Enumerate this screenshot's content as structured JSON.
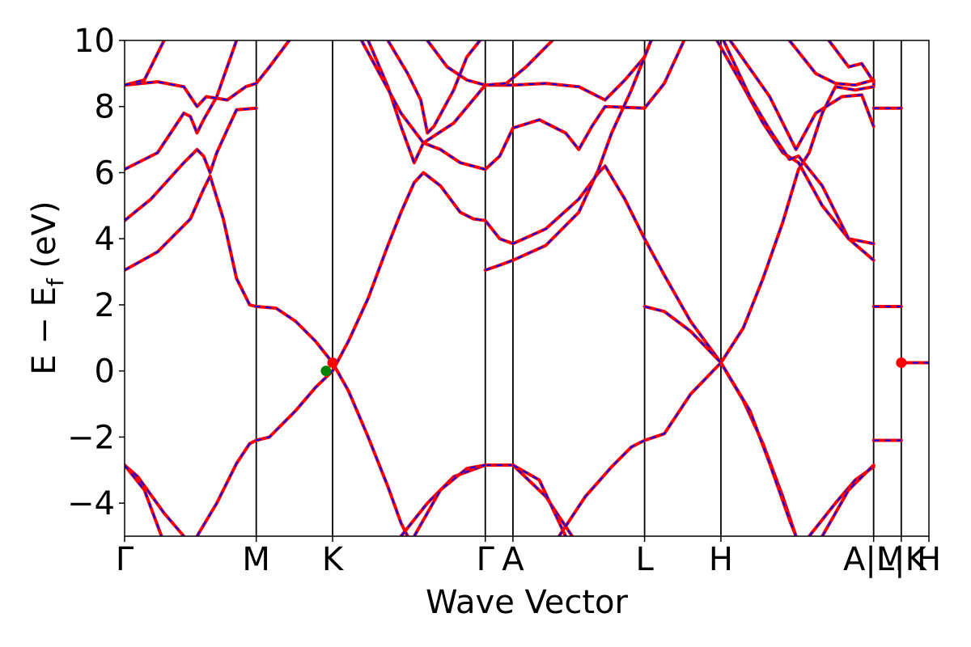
{
  "chart_data": {
    "type": "line",
    "title": "",
    "xlabel": "Wave Vector",
    "ylabel": {
      "base": "E − E",
      "sub": "f",
      "unit": " (eV)"
    },
    "ylim": [
      -5,
      10
    ],
    "yticks": [
      -4,
      -2,
      0,
      2,
      4,
      6,
      8,
      10
    ],
    "ytick_labels": [
      "−4",
      "−2",
      "0",
      "2",
      "4",
      "6",
      "8",
      "10"
    ],
    "grid": false,
    "legend": "none",
    "kpath": [
      {
        "label": "Γ",
        "x": 0.0
      },
      {
        "label": "M",
        "x": 1.0
      },
      {
        "label": "K",
        "x": 1.58
      },
      {
        "label": "Γ",
        "x": 2.74
      },
      {
        "label": "A",
        "x": 2.95
      },
      {
        "label": "L",
        "x": 3.95
      },
      {
        "label": "H",
        "x": 4.53
      },
      {
        "label": "A|M",
        "x": 5.69
      },
      {
        "label": "L|K",
        "x": 5.9
      },
      {
        "label": "H",
        "x": 6.11
      }
    ],
    "xlim": [
      0,
      6.11
    ],
    "colors": {
      "band": "#ff0000",
      "overlay": "#0000ff",
      "weyl_point": "#ff0000",
      "fermi_point": "#008000"
    },
    "series": [
      {
        "style": "band",
        "points": [
          [
            0,
            3.05
          ],
          [
            0.25,
            3.6
          ],
          [
            0.5,
            4.6
          ],
          [
            0.6,
            5.5
          ],
          [
            0.65,
            5.9
          ],
          [
            0.75,
            4.6
          ],
          [
            0.85,
            2.8
          ],
          [
            0.95,
            2.0
          ],
          [
            1.0,
            1.95
          ],
          [
            1.15,
            1.9
          ],
          [
            1.3,
            1.5
          ],
          [
            1.45,
            0.9
          ],
          [
            1.58,
            0.25
          ],
          [
            1.7,
            -0.6
          ],
          [
            1.85,
            -2.0
          ],
          [
            2.0,
            -3.5
          ],
          [
            2.1,
            -4.6
          ],
          [
            2.15,
            -5.0
          ]
        ]
      },
      {
        "style": "band",
        "points": [
          [
            0,
            -2.85
          ],
          [
            0.1,
            -3.2
          ],
          [
            0.3,
            -4.3
          ],
          [
            0.45,
            -5.0
          ]
        ]
      },
      {
        "style": "band",
        "points": [
          [
            0,
            -2.85
          ],
          [
            0.15,
            -3.6
          ],
          [
            0.28,
            -5.0
          ]
        ]
      },
      {
        "style": "band",
        "points": [
          [
            0.55,
            -5.0
          ],
          [
            0.7,
            -4.0
          ],
          [
            0.85,
            -2.8
          ],
          [
            0.95,
            -2.2
          ],
          [
            1.0,
            -2.1
          ],
          [
            1.1,
            -2.0
          ],
          [
            1.3,
            -1.2
          ],
          [
            1.45,
            -0.5
          ],
          [
            1.58,
            0.0
          ],
          [
            1.7,
            0.9
          ],
          [
            1.85,
            2.2
          ],
          [
            2.0,
            3.8
          ],
          [
            2.1,
            4.8
          ],
          [
            2.2,
            5.7
          ],
          [
            2.27,
            6.0
          ],
          [
            2.4,
            5.6
          ],
          [
            2.55,
            4.8
          ],
          [
            2.65,
            4.6
          ],
          [
            2.74,
            4.55
          ],
          [
            2.85,
            4.0
          ],
          [
            2.95,
            3.85
          ],
          [
            3.2,
            4.3
          ],
          [
            3.45,
            5.2
          ],
          [
            3.6,
            6.0
          ],
          [
            3.65,
            6.2
          ],
          [
            3.8,
            5.2
          ],
          [
            3.95,
            4.0
          ],
          [
            4.1,
            2.9
          ],
          [
            4.3,
            1.5
          ],
          [
            4.53,
            0.25
          ],
          [
            4.7,
            -0.9
          ],
          [
            4.85,
            -2.2
          ],
          [
            5.0,
            -3.8
          ],
          [
            5.1,
            -5.0
          ]
        ]
      },
      {
        "style": "band",
        "points": [
          [
            0,
            4.55
          ],
          [
            0.2,
            5.2
          ],
          [
            0.45,
            6.3
          ],
          [
            0.55,
            6.7
          ],
          [
            0.6,
            6.5
          ],
          [
            0.65,
            6.0
          ],
          [
            0.7,
            6.6
          ],
          [
            0.78,
            7.3
          ],
          [
            0.85,
            7.9
          ],
          [
            1.0,
            7.95
          ]
        ]
      },
      {
        "style": "band",
        "points": [
          [
            0,
            6.1
          ],
          [
            0.25,
            6.6
          ],
          [
            0.45,
            7.8
          ],
          [
            0.5,
            7.7
          ],
          [
            0.55,
            7.2
          ],
          [
            0.6,
            7.6
          ],
          [
            0.7,
            8.3
          ],
          [
            0.85,
            10.0
          ]
        ]
      },
      {
        "style": "band",
        "points": [
          [
            0,
            8.65
          ],
          [
            0.25,
            8.75
          ],
          [
            0.45,
            8.6
          ],
          [
            0.55,
            8.0
          ],
          [
            0.62,
            8.3
          ],
          [
            0.78,
            8.2
          ],
          [
            0.92,
            8.6
          ],
          [
            1.0,
            8.7
          ],
          [
            1.1,
            9.2
          ],
          [
            1.25,
            10.0
          ]
        ]
      },
      {
        "style": "band",
        "points": [
          [
            0,
            8.65
          ],
          [
            0.15,
            8.8
          ],
          [
            0.3,
            10.0
          ]
        ]
      },
      {
        "style": "band",
        "points": [
          [
            2.0,
            10.0
          ],
          [
            2.15,
            9.0
          ],
          [
            2.25,
            8.2
          ],
          [
            2.3,
            7.2
          ],
          [
            2.35,
            7.4
          ],
          [
            2.5,
            8.5
          ],
          [
            2.6,
            9.5
          ],
          [
            2.7,
            10.0
          ]
        ]
      },
      {
        "style": "band",
        "points": [
          [
            1.85,
            10.0
          ],
          [
            2.0,
            8.6
          ],
          [
            2.1,
            7.4
          ],
          [
            2.2,
            6.3
          ],
          [
            2.27,
            6.9
          ],
          [
            2.4,
            6.7
          ],
          [
            2.55,
            6.3
          ],
          [
            2.74,
            6.1
          ],
          [
            2.85,
            6.5
          ],
          [
            2.95,
            7.35
          ],
          [
            3.15,
            7.6
          ],
          [
            3.35,
            7.2
          ],
          [
            3.45,
            6.7
          ],
          [
            3.55,
            7.4
          ],
          [
            3.65,
            8.0
          ],
          [
            3.95,
            7.95
          ],
          [
            4.1,
            8.7
          ],
          [
            4.25,
            10.0
          ]
        ]
      },
      {
        "style": "band",
        "points": [
          [
            1.8,
            10.0
          ],
          [
            1.95,
            8.9
          ],
          [
            2.1,
            7.8
          ],
          [
            2.27,
            6.9
          ],
          [
            2.5,
            7.5
          ],
          [
            2.74,
            8.65
          ],
          [
            2.95,
            8.65
          ],
          [
            3.2,
            8.7
          ],
          [
            3.45,
            8.6
          ],
          [
            3.65,
            8.2
          ],
          [
            3.8,
            8.8
          ],
          [
            3.95,
            9.5
          ],
          [
            4.0,
            10.0
          ]
        ]
      },
      {
        "style": "band",
        "points": [
          [
            2.3,
            10.0
          ],
          [
            2.45,
            9.2
          ],
          [
            2.6,
            8.8
          ],
          [
            2.74,
            8.65
          ],
          [
            2.9,
            8.7
          ],
          [
            3.05,
            9.2
          ],
          [
            3.25,
            10.0
          ]
        ]
      },
      {
        "style": "band",
        "points": [
          [
            2.74,
            3.05
          ],
          [
            2.85,
            3.2
          ],
          [
            2.95,
            3.35
          ],
          [
            3.2,
            3.8
          ],
          [
            3.45,
            4.8
          ],
          [
            3.6,
            6.1
          ],
          [
            3.7,
            7.2
          ],
          [
            3.85,
            8.5
          ],
          [
            4.0,
            10.0
          ]
        ]
      },
      {
        "style": "band",
        "points": [
          [
            2.1,
            -5.0
          ],
          [
            2.3,
            -4.0
          ],
          [
            2.5,
            -3.2
          ],
          [
            2.74,
            -2.85
          ],
          [
            2.95,
            -2.85
          ],
          [
            3.2,
            -3.8
          ],
          [
            3.4,
            -5.0
          ]
        ]
      },
      {
        "style": "band",
        "points": [
          [
            2.2,
            -5.0
          ],
          [
            2.4,
            -3.6
          ],
          [
            2.6,
            -2.95
          ],
          [
            2.74,
            -2.85
          ]
        ]
      },
      {
        "style": "band",
        "points": [
          [
            2.95,
            -2.85
          ],
          [
            3.15,
            -3.3
          ],
          [
            3.35,
            -5.0
          ]
        ]
      },
      {
        "style": "band",
        "points": [
          [
            3.3,
            -5.0
          ],
          [
            3.5,
            -3.8
          ],
          [
            3.7,
            -2.9
          ],
          [
            3.85,
            -2.3
          ],
          [
            3.95,
            -2.1
          ],
          [
            4.1,
            -1.9
          ],
          [
            4.3,
            -0.7
          ],
          [
            4.53,
            0.25
          ],
          [
            4.7,
            1.3
          ],
          [
            4.85,
            2.8
          ],
          [
            5.0,
            4.5
          ],
          [
            5.12,
            6.1
          ],
          [
            5.2,
            6.6
          ],
          [
            5.3,
            7.8
          ],
          [
            5.4,
            8.6
          ],
          [
            5.55,
            8.5
          ],
          [
            5.69,
            8.6
          ]
        ]
      },
      {
        "style": "band",
        "points": [
          [
            3.95,
            1.95
          ],
          [
            4.1,
            1.8
          ],
          [
            4.3,
            1.2
          ],
          [
            4.53,
            0.25
          ],
          [
            4.75,
            -1.2
          ],
          [
            4.9,
            -2.8
          ],
          [
            5.05,
            -4.5
          ],
          [
            5.1,
            -5.0
          ]
        ]
      },
      {
        "style": "band",
        "points": [
          [
            4.5,
            10.0
          ],
          [
            4.7,
            8.6
          ],
          [
            4.85,
            7.5
          ],
          [
            5.0,
            6.6
          ],
          [
            5.12,
            6.3
          ],
          [
            5.3,
            5.0
          ],
          [
            5.5,
            4.0
          ],
          [
            5.69,
            3.85
          ]
        ]
      },
      {
        "style": "band",
        "points": [
          [
            4.55,
            10.0
          ],
          [
            4.75,
            8.3
          ],
          [
            4.9,
            7.3
          ],
          [
            5.05,
            6.4
          ],
          [
            5.12,
            6.5
          ],
          [
            5.3,
            5.6
          ],
          [
            5.5,
            4.0
          ],
          [
            5.69,
            3.35
          ]
        ]
      },
      {
        "style": "band",
        "points": [
          [
            4.6,
            10.0
          ],
          [
            4.9,
            8.3
          ],
          [
            5.1,
            6.7
          ],
          [
            5.25,
            7.8
          ],
          [
            5.45,
            8.3
          ],
          [
            5.6,
            8.35
          ],
          [
            5.69,
            7.4
          ]
        ]
      },
      {
        "style": "band",
        "points": [
          [
            5.05,
            10.0
          ],
          [
            5.25,
            9.0
          ],
          [
            5.4,
            8.7
          ],
          [
            5.55,
            8.65
          ],
          [
            5.69,
            8.8
          ]
        ]
      },
      {
        "style": "band",
        "points": [
          [
            5.35,
            10.0
          ],
          [
            5.5,
            9.2
          ],
          [
            5.6,
            9.3
          ],
          [
            5.69,
            8.75
          ]
        ]
      },
      {
        "style": "band",
        "points": [
          [
            5.2,
            -5.0
          ],
          [
            5.4,
            -4.0
          ],
          [
            5.55,
            -3.3
          ],
          [
            5.69,
            -2.9
          ]
        ]
      },
      {
        "style": "band",
        "points": [
          [
            5.3,
            -5.0
          ],
          [
            5.5,
            -3.6
          ],
          [
            5.69,
            -2.85
          ]
        ]
      },
      {
        "style": "band",
        "points": [
          [
            5.69,
            8.7
          ],
          [
            5.69,
            8.65
          ]
        ]
      },
      {
        "style": "band",
        "points": [
          [
            5.69,
            7.95
          ],
          [
            5.9,
            7.95
          ]
        ]
      },
      {
        "style": "band",
        "points": [
          [
            5.69,
            1.95
          ],
          [
            5.9,
            1.95
          ]
        ]
      },
      {
        "style": "band",
        "points": [
          [
            5.69,
            -2.1
          ],
          [
            5.9,
            -2.1
          ]
        ]
      },
      {
        "style": "band",
        "points": [
          [
            5.9,
            0.25
          ],
          [
            6.11,
            0.25
          ]
        ]
      }
    ],
    "markers": [
      {
        "kind": "weyl_point",
        "x": 1.58,
        "y": 0.25
      },
      {
        "kind": "fermi_point",
        "x": 1.53,
        "y": 0.0
      },
      {
        "kind": "weyl_point",
        "x": 5.9,
        "y": 0.25
      }
    ]
  }
}
